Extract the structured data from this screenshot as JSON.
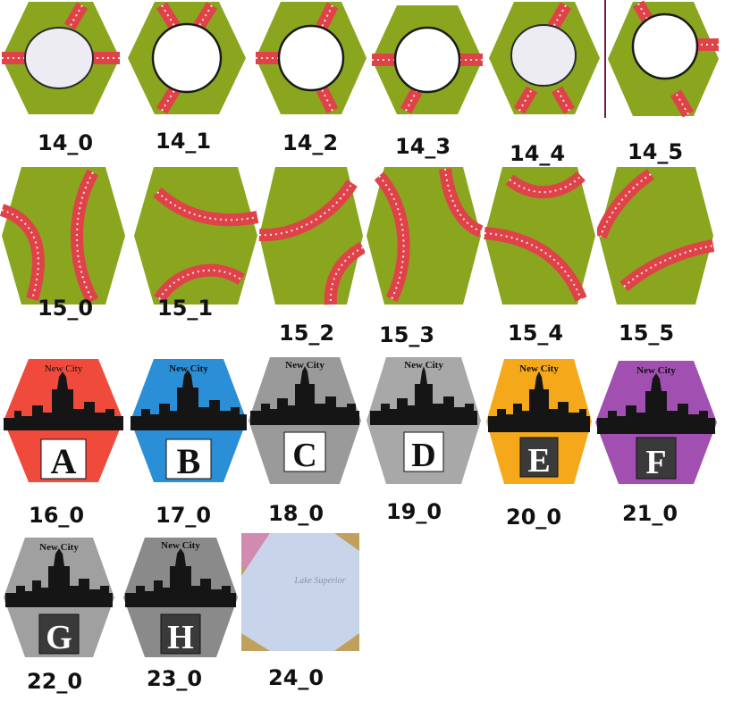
{
  "colors": {
    "grass": "#8aa51e",
    "grass_dark": "#6f8c17",
    "rail": "#e0424a",
    "tie": "#f2e8d8",
    "city_red": "#f04a3c",
    "city_blue": "#2a8fd6",
    "city_gray": "#9a9a9a",
    "city_gray_light": "#a8a8a8",
    "city_orange": "#f5a81a",
    "city_purple": "#a24fb2",
    "city_darkgray": "#8a8a8a",
    "lake": "#c8d4ea",
    "lake_pink": "#d28bb0",
    "lake_tan": "#c1a05e"
  },
  "tiles": [
    {
      "id": "14_0",
      "label": "14_0",
      "kind": "town"
    },
    {
      "id": "14_1",
      "label": "14_1",
      "kind": "town"
    },
    {
      "id": "14_2",
      "label": "14_2",
      "kind": "town"
    },
    {
      "id": "14_3",
      "label": "14_3",
      "kind": "town"
    },
    {
      "id": "14_4",
      "label": "14_4",
      "kind": "town"
    },
    {
      "id": "14_5",
      "label": "14_5",
      "kind": "town"
    },
    {
      "id": "15_0",
      "label": "15_0",
      "kind": "curves"
    },
    {
      "id": "15_1",
      "label": "15_1",
      "kind": "curves"
    },
    {
      "id": "15_2",
      "label": "15_2",
      "kind": "curves"
    },
    {
      "id": "15_3",
      "label": "15_3",
      "kind": "curves"
    },
    {
      "id": "15_4",
      "label": "15_4",
      "kind": "curves"
    },
    {
      "id": "15_5",
      "label": "15_5",
      "kind": "curves"
    },
    {
      "id": "16_0",
      "label": "16_0",
      "kind": "city",
      "city_name": "New City",
      "letter": "A",
      "color": "city_red"
    },
    {
      "id": "17_0",
      "label": "17_0",
      "kind": "city",
      "city_name": "New City",
      "letter": "B",
      "color": "city_blue"
    },
    {
      "id": "18_0",
      "label": "18_0",
      "kind": "city",
      "city_name": "New City",
      "letter": "C",
      "color": "city_gray"
    },
    {
      "id": "19_0",
      "label": "19_0",
      "kind": "city",
      "city_name": "New City",
      "letter": "D",
      "color": "city_gray_light"
    },
    {
      "id": "20_0",
      "label": "20_0",
      "kind": "city",
      "city_name": "New City",
      "letter": "E",
      "color": "city_orange"
    },
    {
      "id": "21_0",
      "label": "21_0",
      "kind": "city",
      "city_name": "New City",
      "letter": "F",
      "color": "city_purple"
    },
    {
      "id": "22_0",
      "label": "22_0",
      "kind": "city",
      "city_name": "New City",
      "letter": "G",
      "color": "city_gray"
    },
    {
      "id": "23_0",
      "label": "23_0",
      "kind": "city",
      "city_name": "New City",
      "letter": "H",
      "color": "city_darkgray"
    },
    {
      "id": "24_0",
      "label": "24_0",
      "kind": "lake",
      "lake_name": "Lake Superior"
    }
  ]
}
